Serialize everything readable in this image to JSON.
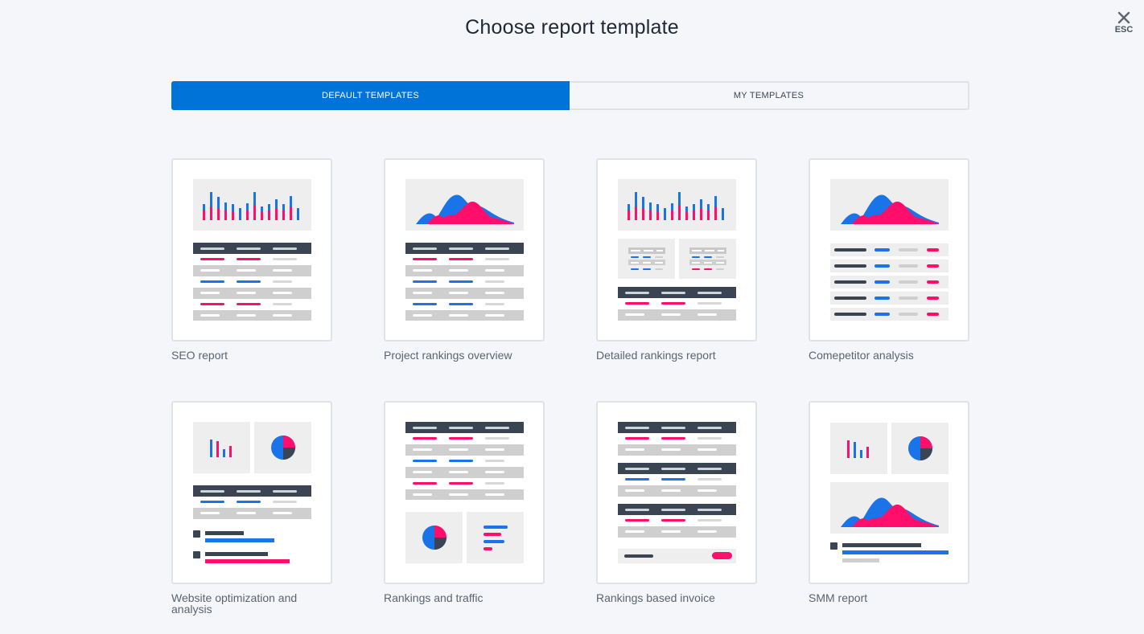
{
  "title": "Choose report template",
  "close": {
    "icon": "close-icon",
    "label": "ESC"
  },
  "tabs": [
    {
      "label": "DEFAULT TEMPLATES",
      "active": true
    },
    {
      "label": "MY TEMPLATES",
      "active": false
    }
  ],
  "templates": [
    {
      "label": "SEO report"
    },
    {
      "label": "Project rankings overview"
    },
    {
      "label": "Detailed rankings report"
    },
    {
      "label": "Comepetitor analysis"
    },
    {
      "label": "Website optimization and analysis"
    },
    {
      "label": "Rankings and traffic"
    },
    {
      "label": "Rankings based invoice"
    },
    {
      "label": "SMM report"
    }
  ],
  "colors": {
    "accent": "#0073d9",
    "blue": "#1a73e8",
    "pink": "#ff0f6b",
    "dark": "#3a4452",
    "gray": "#cfcfcf",
    "panel": "#eeeeee"
  }
}
